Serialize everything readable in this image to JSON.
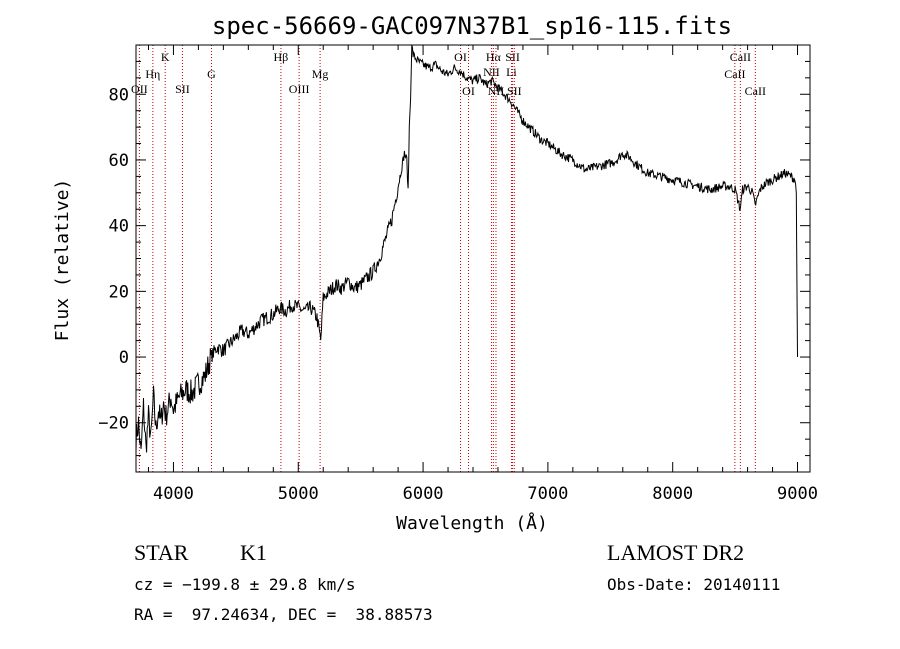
{
  "chart_data": {
    "type": "line",
    "title": "spec-56669-GAC097N37B1_sp16-115.fits",
    "xlabel": "Wavelength (Å)",
    "ylabel": "Flux (relative)",
    "xlim": [
      3700,
      9100
    ],
    "ylim": [
      -35,
      95
    ],
    "x_ticks": [
      4000,
      5000,
      6000,
      7000,
      8000,
      9000
    ],
    "y_ticks": [
      -20,
      0,
      20,
      40,
      60,
      80
    ],
    "grid": false,
    "line_color": "#000000",
    "series": [
      {
        "x": [
          3700,
          3720,
          3740,
          3760,
          3780,
          3800,
          3820,
          3840,
          3860,
          3880,
          3900,
          3920,
          3940,
          3960,
          3980,
          4000,
          4050,
          4100,
          4150,
          4200,
          4250,
          4300,
          4350,
          4400,
          4450,
          4500,
          4550,
          4600,
          4650,
          4700,
          4750,
          4800,
          4850,
          4900,
          4950,
          5000,
          5050,
          5100,
          5150,
          5180,
          5200,
          5250,
          5300,
          5350,
          5400,
          5450,
          5500,
          5550,
          5600,
          5650,
          5700,
          5750,
          5780,
          5800,
          5830,
          5850,
          5870,
          5880,
          5890,
          5900,
          5910,
          5920,
          5940,
          5960,
          6000,
          6050,
          6100,
          6150,
          6200,
          6250,
          6300,
          6350,
          6400,
          6450,
          6500,
          6550,
          6600,
          6650,
          6700,
          6750,
          6800,
          6850,
          6900,
          6950,
          7000,
          7100,
          7200,
          7300,
          7400,
          7500,
          7550,
          7600,
          7650,
          7700,
          7800,
          7900,
          8000,
          8100,
          8200,
          8300,
          8400,
          8450,
          8500,
          8540,
          8560,
          8600,
          8640,
          8660,
          8700,
          8750,
          8800,
          8850,
          8900,
          8950,
          8980,
          8990,
          9000
        ],
        "y": [
          -25,
          -20,
          -30,
          -15,
          -28,
          -18,
          -25,
          -12,
          -22,
          -16,
          -20,
          -14,
          -18,
          -15,
          -12,
          -16,
          -12,
          -10,
          -11,
          -8,
          -6,
          0,
          3,
          2,
          4,
          6,
          8,
          7,
          9,
          11,
          12,
          13,
          15,
          14,
          16,
          15,
          14,
          15,
          12,
          5,
          18,
          20,
          22,
          21,
          23,
          21,
          22,
          24,
          26,
          30,
          36,
          42,
          48,
          52,
          58,
          62,
          60,
          50,
          70,
          80,
          95,
          92,
          91,
          90,
          89,
          88,
          89,
          87,
          86,
          88,
          87,
          85,
          84,
          85,
          83,
          84,
          82,
          80,
          78,
          75,
          72,
          70,
          68,
          66,
          65,
          62,
          60,
          57,
          58,
          59,
          60,
          62,
          61,
          59,
          56,
          55,
          54,
          53,
          52,
          51,
          52,
          52,
          51,
          45,
          51,
          52,
          50,
          46,
          51,
          53,
          54,
          55,
          56,
          55,
          54,
          50,
          0
        ]
      }
    ],
    "lines": [
      {
        "label": "OII",
        "x": 3727
      },
      {
        "label": "Hη",
        "x": 3835
      },
      {
        "label": "K",
        "x": 3934
      },
      {
        "label": "SII",
        "x": 4072
      },
      {
        "label": "G",
        "x": 4305
      },
      {
        "label": "Hβ",
        "x": 4861
      },
      {
        "label": "OIII",
        "x": 5007
      },
      {
        "label": "Mg",
        "x": 5175
      },
      {
        "label": "OI",
        "x": 6300
      },
      {
        "label": "OI",
        "x": 6364
      },
      {
        "label": "Hα",
        "x": 6563
      },
      {
        "label": "NII",
        "x": 6548
      },
      {
        "label": "NII",
        "x": 6584
      },
      {
        "label": "Li",
        "x": 6708
      },
      {
        "label": "SII",
        "x": 6717
      },
      {
        "label": "SII",
        "x": 6731
      },
      {
        "label": "CaII",
        "x": 8498
      },
      {
        "label": "CaII",
        "x": 8542
      },
      {
        "label": "CaII",
        "x": 8662
      }
    ]
  },
  "info": {
    "class_label": "STAR",
    "subclass_label": "K1",
    "survey_label": "LAMOST DR2",
    "cz_text": "cz = −199.8 ± 29.8 km/s",
    "obs_date_text": "Obs-Date: 20140111",
    "radec_text": "RA =  97.24634, DEC =  38.88573"
  }
}
